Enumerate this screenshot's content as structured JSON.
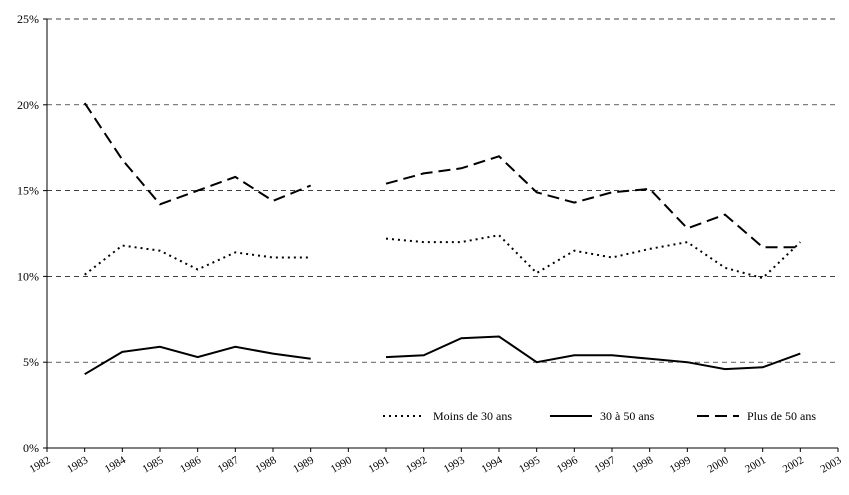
{
  "chart_data": {
    "type": "line",
    "title": "",
    "xlabel": "",
    "ylabel": "",
    "x": [
      "1982",
      "1983",
      "1984",
      "1985",
      "1986",
      "1987",
      "1988",
      "1989",
      "1990",
      "1991",
      "1992",
      "1993",
      "1994",
      "1995",
      "1996",
      "1997",
      "1998",
      "1999",
      "2000",
      "2001",
      "2002",
      "2003"
    ],
    "ylim": [
      0,
      25
    ],
    "y_ticks": [
      "0%",
      "5%",
      "10%",
      "15%",
      "20%",
      "25%"
    ],
    "grid": "horizontal-dashed",
    "legend_position": "bottom-right",
    "series": [
      {
        "name": "Moins de 30 ans",
        "style": "dotted",
        "values": [
          null,
          10.1,
          11.8,
          11.5,
          10.4,
          11.4,
          11.1,
          11.1,
          null,
          12.2,
          12.0,
          12.0,
          12.4,
          10.2,
          11.5,
          11.1,
          11.6,
          12.0,
          10.5,
          9.9,
          12.0,
          null
        ]
      },
      {
        "name": "30 à 50 ans",
        "style": "solid",
        "values": [
          null,
          4.3,
          5.6,
          5.9,
          5.3,
          5.9,
          5.5,
          5.2,
          null,
          5.3,
          5.4,
          6.4,
          6.5,
          5.0,
          5.4,
          5.4,
          5.2,
          5.0,
          4.6,
          4.7,
          5.5,
          null
        ]
      },
      {
        "name": "Plus de 50 ans",
        "style": "dashed",
        "values": [
          null,
          20.1,
          16.8,
          14.2,
          15.0,
          15.8,
          14.4,
          15.3,
          null,
          15.4,
          16.0,
          16.3,
          17.0,
          14.9,
          14.3,
          14.9,
          15.1,
          12.8,
          13.6,
          11.7,
          11.7,
          null
        ]
      }
    ]
  }
}
